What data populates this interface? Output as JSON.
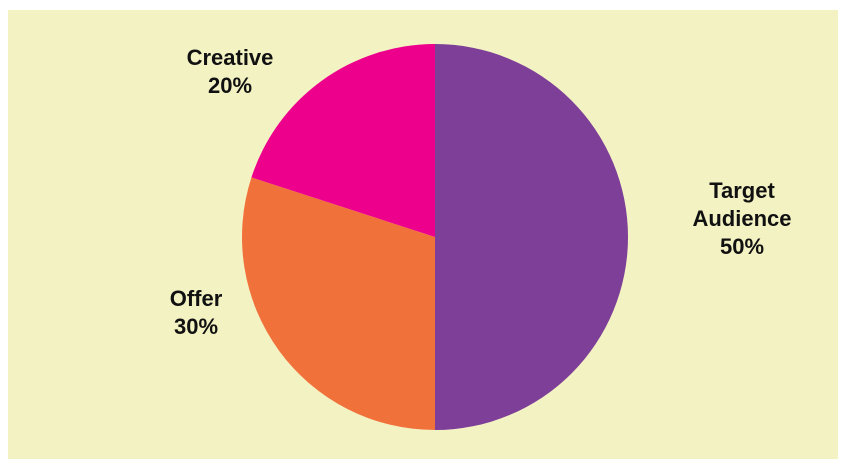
{
  "chart_data": {
    "type": "pie",
    "title": "",
    "start_angle_deg": 0,
    "direction": "clockwise",
    "slices": [
      {
        "label": [
          "Target",
          "Audience"
        ],
        "value": 50,
        "value_label": "50%",
        "color": "#7e3f98"
      },
      {
        "label": [
          "Offer"
        ],
        "value": 30,
        "value_label": "30%",
        "color": "#f1713b"
      },
      {
        "label": [
          "Creative"
        ],
        "value": 20,
        "value_label": "20%",
        "color": "#ec008c"
      }
    ]
  },
  "colors": {
    "background": "#f3f2c3",
    "label_text": "#111111"
  }
}
